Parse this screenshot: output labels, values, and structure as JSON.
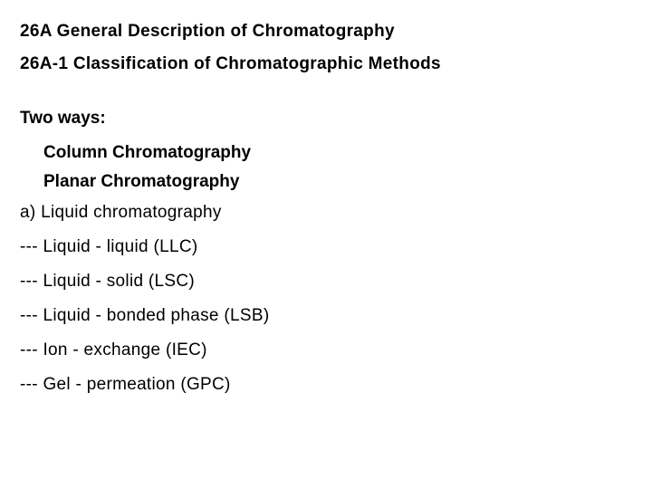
{
  "heading1": "26A General Description of Chromatography",
  "heading2": "26A-1 Classification of Chromatographic Methods",
  "subheading": "Two ways:",
  "methods": {
    "m0": "Column Chromatography",
    "m1": "Planar Chromatography"
  },
  "listHeader": "a) Liquid chromatography",
  "items": {
    "i0": "--- Liquid - liquid (LLC)",
    "i1": "--- Liquid - solid (LSC)",
    "i2": "--- Liquid - bonded phase (LSB)",
    "i3": "--- Ion - exchange (IEC)",
    "i4": "--- Gel - permeation (GPC)"
  },
  "colors": {
    "background": "#ffffff",
    "text": "#000000"
  },
  "typography": {
    "heading_fontsize": 19,
    "heading_weight": 700,
    "body_fontsize": 19,
    "body_weight": 400,
    "font_family": "Malgun Gothic"
  }
}
